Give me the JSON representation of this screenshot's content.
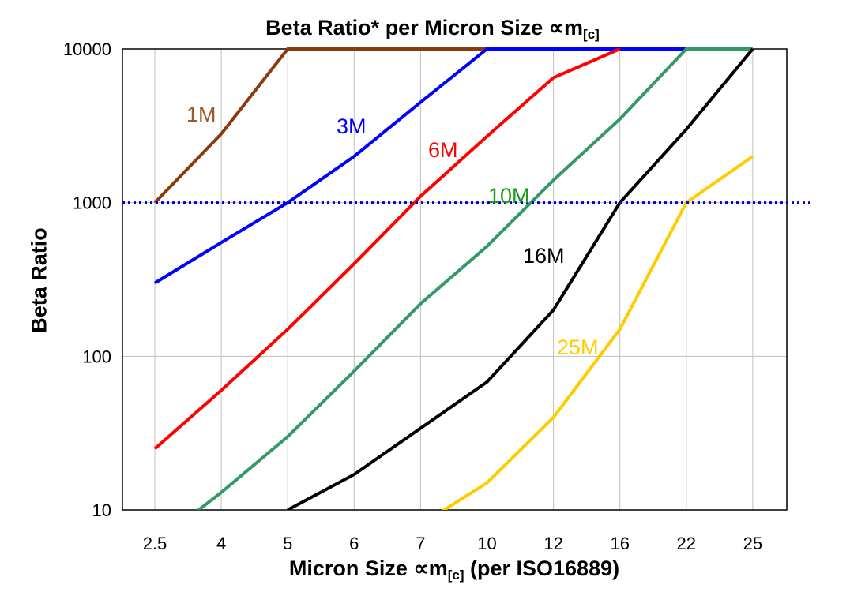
{
  "chart_data": {
    "type": "line",
    "title": "Beta Ratio* per Micron Size ∝m",
    "title_sub": "[c]",
    "xlabel": "Micron Size ∝m",
    "xlabel_sub": "[c]",
    "xlabel_suffix": " (per ISO16889)",
    "ylabel": "Beta Ratio",
    "categories": [
      "2.5",
      "4",
      "5",
      "6",
      "7",
      "10",
      "12",
      "16",
      "22",
      "25"
    ],
    "y_scale": "log",
    "ylim": [
      10,
      10000
    ],
    "y_ticks": [
      "10",
      "100",
      "1000",
      "10000"
    ],
    "grid": true,
    "reference_line": {
      "y": 1000,
      "style": "dotted",
      "color": "#0000CC"
    },
    "series": [
      {
        "name": "1M",
        "color": "#8B3A0F",
        "label_color": "#9B5B2B",
        "values": [
          1000,
          2800,
          10000,
          10000,
          10000,
          10000,
          null,
          null,
          null,
          null
        ]
      },
      {
        "name": "3M",
        "color": "#0000FF",
        "label_color": "#0000FF",
        "values": [
          300,
          550,
          1000,
          2000,
          4500,
          10000,
          10000,
          10000,
          10000,
          null
        ]
      },
      {
        "name": "6M",
        "color": "#FF0000",
        "label_color": "#FF0000",
        "values": [
          25,
          60,
          150,
          400,
          1100,
          2700,
          6500,
          10000,
          null,
          null
        ]
      },
      {
        "name": "10M",
        "color": "#339966",
        "label_color": "#1A9A1A",
        "values": [
          6,
          13,
          30,
          80,
          220,
          520,
          1400,
          3500,
          10000,
          10000
        ]
      },
      {
        "name": "16M",
        "color": "#000000",
        "label_color": "#000000",
        "values": [
          null,
          null,
          10,
          17,
          34,
          68,
          200,
          1000,
          3000,
          10000
        ]
      },
      {
        "name": "25M",
        "color": "#FFCC00",
        "label_color": "#FFCC00",
        "values": [
          null,
          null,
          null,
          null,
          8,
          15,
          40,
          150,
          1000,
          2000
        ]
      }
    ]
  }
}
